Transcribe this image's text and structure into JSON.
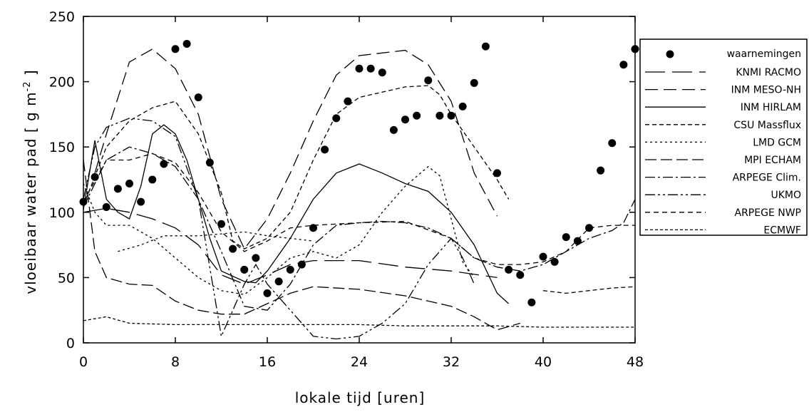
{
  "chart_data": {
    "type": "line",
    "title": "",
    "xlabel": "lokale tijd [uren]",
    "ylabel": "vloeibaar water pad [ g m-2 ]",
    "ylabel_main": "vloeibaar water pad [ g m",
    "ylabel_sup": "-2",
    "ylabel_end": " ]",
    "xlim": [
      0,
      48
    ],
    "ylim": [
      0,
      250
    ],
    "xticks": [
      0,
      8,
      16,
      24,
      32,
      40,
      48
    ],
    "yticks": [
      0,
      50,
      100,
      150,
      200,
      250
    ],
    "grid": false,
    "legend_position": "right",
    "observations": {
      "name": "waarnemingen",
      "points": [
        [
          0,
          108
        ],
        [
          1,
          127
        ],
        [
          2,
          104
        ],
        [
          3,
          118
        ],
        [
          4,
          122
        ],
        [
          5,
          108
        ],
        [
          6,
          125
        ],
        [
          7,
          137
        ],
        [
          8,
          225
        ],
        [
          9,
          229
        ],
        [
          10,
          188
        ],
        [
          11,
          138
        ],
        [
          12,
          91
        ],
        [
          13,
          72
        ],
        [
          14,
          56
        ],
        [
          15,
          65
        ],
        [
          16,
          38
        ],
        [
          17,
          47
        ],
        [
          18,
          56
        ],
        [
          19,
          60
        ],
        [
          20,
          88
        ],
        [
          21,
          148
        ],
        [
          22,
          172
        ],
        [
          23,
          185
        ],
        [
          24,
          210
        ],
        [
          25,
          210
        ],
        [
          26,
          207
        ],
        [
          27,
          163
        ],
        [
          28,
          171
        ],
        [
          29,
          174
        ],
        [
          30,
          201
        ],
        [
          31,
          174
        ],
        [
          32,
          174
        ],
        [
          33,
          181
        ],
        [
          34,
          199
        ],
        [
          35,
          227
        ],
        [
          36,
          130
        ],
        [
          37,
          56
        ],
        [
          38,
          52
        ],
        [
          39,
          31
        ],
        [
          40,
          66
        ],
        [
          41,
          62
        ],
        [
          42,
          81
        ],
        [
          43,
          78
        ],
        [
          44,
          88
        ],
        [
          45,
          132
        ],
        [
          46,
          153
        ],
        [
          47,
          213
        ],
        [
          48,
          225
        ]
      ]
    },
    "series": [
      {
        "name": "KNMI RACMO",
        "dash": "28,10",
        "points": [
          [
            0,
            100
          ],
          [
            2,
            103
          ],
          [
            4,
            100
          ],
          [
            6,
            95
          ],
          [
            8,
            88
          ],
          [
            10,
            75
          ],
          [
            12,
            52
          ],
          [
            14,
            45
          ],
          [
            16,
            52
          ],
          [
            18,
            60
          ],
          [
            20,
            63
          ],
          [
            24,
            63
          ],
          [
            28,
            58
          ],
          [
            32,
            55
          ],
          [
            36,
            50
          ]
        ]
      },
      {
        "name": "INM MESO-NH",
        "dash": "18,8",
        "points": [
          [
            1,
            130
          ],
          [
            2,
            160
          ],
          [
            4,
            215
          ],
          [
            6,
            225
          ],
          [
            8,
            210
          ],
          [
            10,
            175
          ],
          [
            12,
            110
          ],
          [
            14,
            72
          ],
          [
            16,
            95
          ],
          [
            18,
            130
          ],
          [
            20,
            170
          ],
          [
            22,
            205
          ],
          [
            24,
            220
          ],
          [
            28,
            224
          ],
          [
            30,
            213
          ],
          [
            32,
            185
          ],
          [
            34,
            130
          ],
          [
            36,
            97
          ]
        ]
      },
      {
        "name": "INM HIRLAM",
        "dash": "",
        "points": [
          [
            0,
            102
          ],
          [
            1,
            155
          ],
          [
            2,
            110
          ],
          [
            3,
            100
          ],
          [
            4,
            95
          ],
          [
            5,
            120
          ],
          [
            6,
            160
          ],
          [
            7,
            167
          ],
          [
            8,
            160
          ],
          [
            9,
            140
          ],
          [
            10,
            110
          ],
          [
            11,
            80
          ],
          [
            12,
            55
          ],
          [
            14,
            47
          ],
          [
            15,
            46
          ],
          [
            16,
            55
          ],
          [
            18,
            80
          ],
          [
            20,
            110
          ],
          [
            22,
            130
          ],
          [
            24,
            137
          ],
          [
            26,
            130
          ],
          [
            28,
            122
          ],
          [
            30,
            116
          ],
          [
            32,
            100
          ],
          [
            34,
            75
          ],
          [
            36,
            38
          ],
          [
            37,
            30
          ]
        ]
      },
      {
        "name": "CSU Massflux",
        "dash": "6,4",
        "points": [
          [
            0,
            105
          ],
          [
            2,
            150
          ],
          [
            4,
            170
          ],
          [
            6,
            180
          ],
          [
            8,
            185
          ],
          [
            10,
            160
          ],
          [
            12,
            115
          ],
          [
            13,
            78
          ],
          [
            14,
            72
          ],
          [
            16,
            80
          ],
          [
            18,
            100
          ],
          [
            20,
            140
          ],
          [
            22,
            175
          ],
          [
            24,
            188
          ],
          [
            28,
            196
          ],
          [
            30,
            197
          ],
          [
            31,
            190
          ],
          [
            32,
            175
          ],
          [
            34,
            150
          ],
          [
            36,
            125
          ],
          [
            37,
            110
          ]
        ]
      },
      {
        "name": "LMD GCM",
        "dash": "3,4",
        "points": [
          [
            0,
            122
          ],
          [
            1,
            100
          ],
          [
            2,
            90
          ],
          [
            4,
            90
          ],
          [
            6,
            80
          ],
          [
            8,
            65
          ],
          [
            10,
            50
          ],
          [
            12,
            40
          ],
          [
            14,
            37
          ],
          [
            16,
            50
          ],
          [
            18,
            65
          ],
          [
            20,
            70
          ],
          [
            22,
            65
          ],
          [
            24,
            75
          ],
          [
            26,
            100
          ],
          [
            28,
            120
          ],
          [
            30,
            135
          ],
          [
            31,
            128
          ],
          [
            32,
            95
          ],
          [
            33,
            62
          ],
          [
            34,
            50
          ]
        ]
      },
      {
        "name": "MPI ECHAM",
        "dash": "16,6",
        "points": [
          [
            0,
            140
          ],
          [
            1,
            70
          ],
          [
            2,
            50
          ],
          [
            4,
            45
          ],
          [
            6,
            44
          ],
          [
            8,
            32
          ],
          [
            10,
            25
          ],
          [
            12,
            22
          ],
          [
            14,
            22
          ],
          [
            16,
            30
          ],
          [
            18,
            38
          ],
          [
            20,
            43
          ],
          [
            24,
            41
          ],
          [
            28,
            36
          ],
          [
            32,
            28
          ],
          [
            34,
            20
          ],
          [
            36,
            10
          ],
          [
            38,
            15
          ]
        ]
      },
      {
        "name": "ARPEGE Clim.",
        "dash": "14,4,3,4",
        "points": [
          [
            0,
            104
          ],
          [
            2,
            140
          ],
          [
            4,
            150
          ],
          [
            6,
            145
          ],
          [
            8,
            135
          ],
          [
            10,
            110
          ],
          [
            12,
            70
          ],
          [
            14,
            28
          ],
          [
            16,
            25
          ],
          [
            18,
            45
          ],
          [
            20,
            75
          ],
          [
            22,
            90
          ],
          [
            24,
            92
          ],
          [
            26,
            93
          ],
          [
            28,
            92
          ],
          [
            30,
            88
          ],
          [
            32,
            80
          ],
          [
            34,
            65
          ],
          [
            36,
            58
          ],
          [
            38,
            55
          ],
          [
            40,
            60
          ],
          [
            42,
            70
          ],
          [
            44,
            80
          ],
          [
            46,
            86
          ],
          [
            47,
            92
          ],
          [
            48,
            110
          ]
        ]
      },
      {
        "name": "UKMO",
        "dash": "14,4,3,4,3,4",
        "points": [
          [
            0,
            110
          ],
          [
            1,
            150
          ],
          [
            2,
            165
          ],
          [
            4,
            172
          ],
          [
            6,
            170
          ],
          [
            8,
            158
          ],
          [
            10,
            110
          ],
          [
            12,
            5
          ],
          [
            14,
            45
          ],
          [
            15,
            60
          ],
          [
            16,
            45
          ],
          [
            18,
            25
          ],
          [
            20,
            5
          ],
          [
            22,
            3
          ],
          [
            24,
            5
          ],
          [
            26,
            15
          ],
          [
            28,
            30
          ],
          [
            30,
            60
          ],
          [
            32,
            80
          ],
          [
            33,
            65
          ],
          [
            34,
            45
          ]
        ]
      },
      {
        "name": "ARPEGE NWP",
        "dash": "7,5",
        "points": [
          [
            0,
            108
          ],
          [
            2,
            140
          ],
          [
            4,
            140
          ],
          [
            6,
            145
          ],
          [
            8,
            138
          ],
          [
            10,
            115
          ],
          [
            12,
            85
          ],
          [
            14,
            70
          ],
          [
            16,
            78
          ],
          [
            18,
            88
          ],
          [
            20,
            90
          ],
          [
            24,
            92
          ],
          [
            28,
            93
          ],
          [
            32,
            80
          ],
          [
            34,
            65
          ],
          [
            36,
            60
          ],
          [
            38,
            60
          ],
          [
            40,
            62
          ],
          [
            42,
            70
          ],
          [
            44,
            88
          ],
          [
            46,
            90
          ],
          [
            48,
            90
          ]
        ]
      },
      {
        "name": "ECMWF",
        "dash": "4,3",
        "points": [
          [
            0,
            17
          ],
          [
            2,
            20
          ],
          [
            4,
            15
          ],
          [
            8,
            14
          ],
          [
            12,
            14
          ],
          [
            16,
            14
          ],
          [
            20,
            14
          ],
          [
            24,
            14
          ],
          [
            28,
            13
          ],
          [
            32,
            13
          ],
          [
            36,
            13
          ],
          [
            40,
            12
          ],
          [
            44,
            12
          ],
          [
            48,
            12
          ]
        ]
      }
    ],
    "extra_curves": [
      {
        "dash": "6,4",
        "points": [
          [
            40,
            40
          ],
          [
            42,
            38
          ],
          [
            44,
            40
          ],
          [
            46,
            42
          ],
          [
            48,
            43
          ]
        ]
      },
      {
        "dash": "3,4",
        "points": [
          [
            3,
            70
          ],
          [
            5,
            75
          ],
          [
            7,
            82
          ],
          [
            10,
            82
          ],
          [
            14,
            85
          ],
          [
            16,
            82
          ],
          [
            18,
            80
          ],
          [
            20,
            78
          ]
        ]
      }
    ]
  }
}
